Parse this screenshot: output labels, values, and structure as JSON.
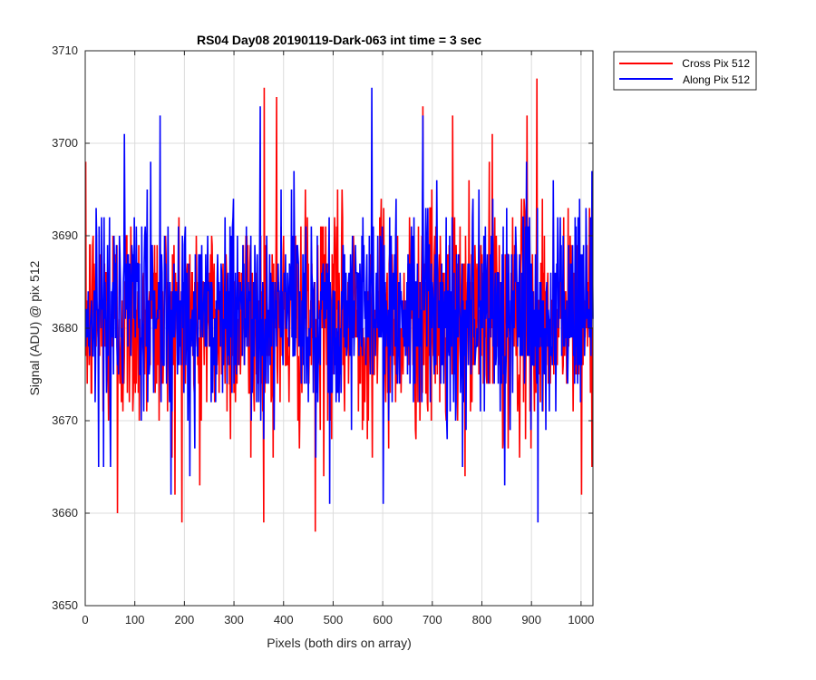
{
  "chart_data": {
    "type": "line",
    "title": "RS04 Day08 20190119-Dark-063 int time = 3 sec",
    "xlabel": "Pixels (both dirs on array)",
    "ylabel": "Signal (ADU) @ pix 512",
    "xlim": [
      0,
      1024
    ],
    "ylim": [
      3650,
      3710
    ],
    "xticks": [
      0,
      100,
      200,
      300,
      400,
      500,
      600,
      700,
      800,
      900,
      1000
    ],
    "yticks": [
      3650,
      3660,
      3670,
      3680,
      3690,
      3700,
      3710
    ],
    "grid": true,
    "legend_position": "outside-top-right",
    "n_points": 1024,
    "series": [
      {
        "name": "Cross Pix 512",
        "color": "#ff0000",
        "mean": 3681,
        "spread": 6,
        "min": {
          "x": 463,
          "y": 3658
        },
        "max": {
          "x": 910,
          "y": 3707
        },
        "extremes": [
          {
            "x": 64,
            "y": 3660
          },
          {
            "x": 180,
            "y": 3662
          },
          {
            "x": 333,
            "y": 3666
          },
          {
            "x": 360,
            "y": 3706
          },
          {
            "x": 385,
            "y": 3705
          },
          {
            "x": 680,
            "y": 3704
          },
          {
            "x": 740,
            "y": 3703
          },
          {
            "x": 820,
            "y": 3701
          },
          {
            "x": 890,
            "y": 3703
          },
          {
            "x": 1000,
            "y": 3662
          },
          {
            "x": 230,
            "y": 3663
          },
          {
            "x": 480,
            "y": 3664
          }
        ]
      },
      {
        "name": "Along Pix 512",
        "color": "#0000ff",
        "mean": 3682,
        "spread": 5.5,
        "min": {
          "x": 912,
          "y": 3659
        },
        "max": {
          "x": 577,
          "y": 3706
        },
        "extremes": [
          {
            "x": 150,
            "y": 3703
          },
          {
            "x": 352,
            "y": 3704
          },
          {
            "x": 492,
            "y": 3661
          },
          {
            "x": 600,
            "y": 3661
          },
          {
            "x": 680,
            "y": 3703
          },
          {
            "x": 760,
            "y": 3665
          },
          {
            "x": 845,
            "y": 3663
          },
          {
            "x": 50,
            "y": 3665
          },
          {
            "x": 210,
            "y": 3664
          },
          {
            "x": 420,
            "y": 3697
          }
        ]
      }
    ]
  }
}
